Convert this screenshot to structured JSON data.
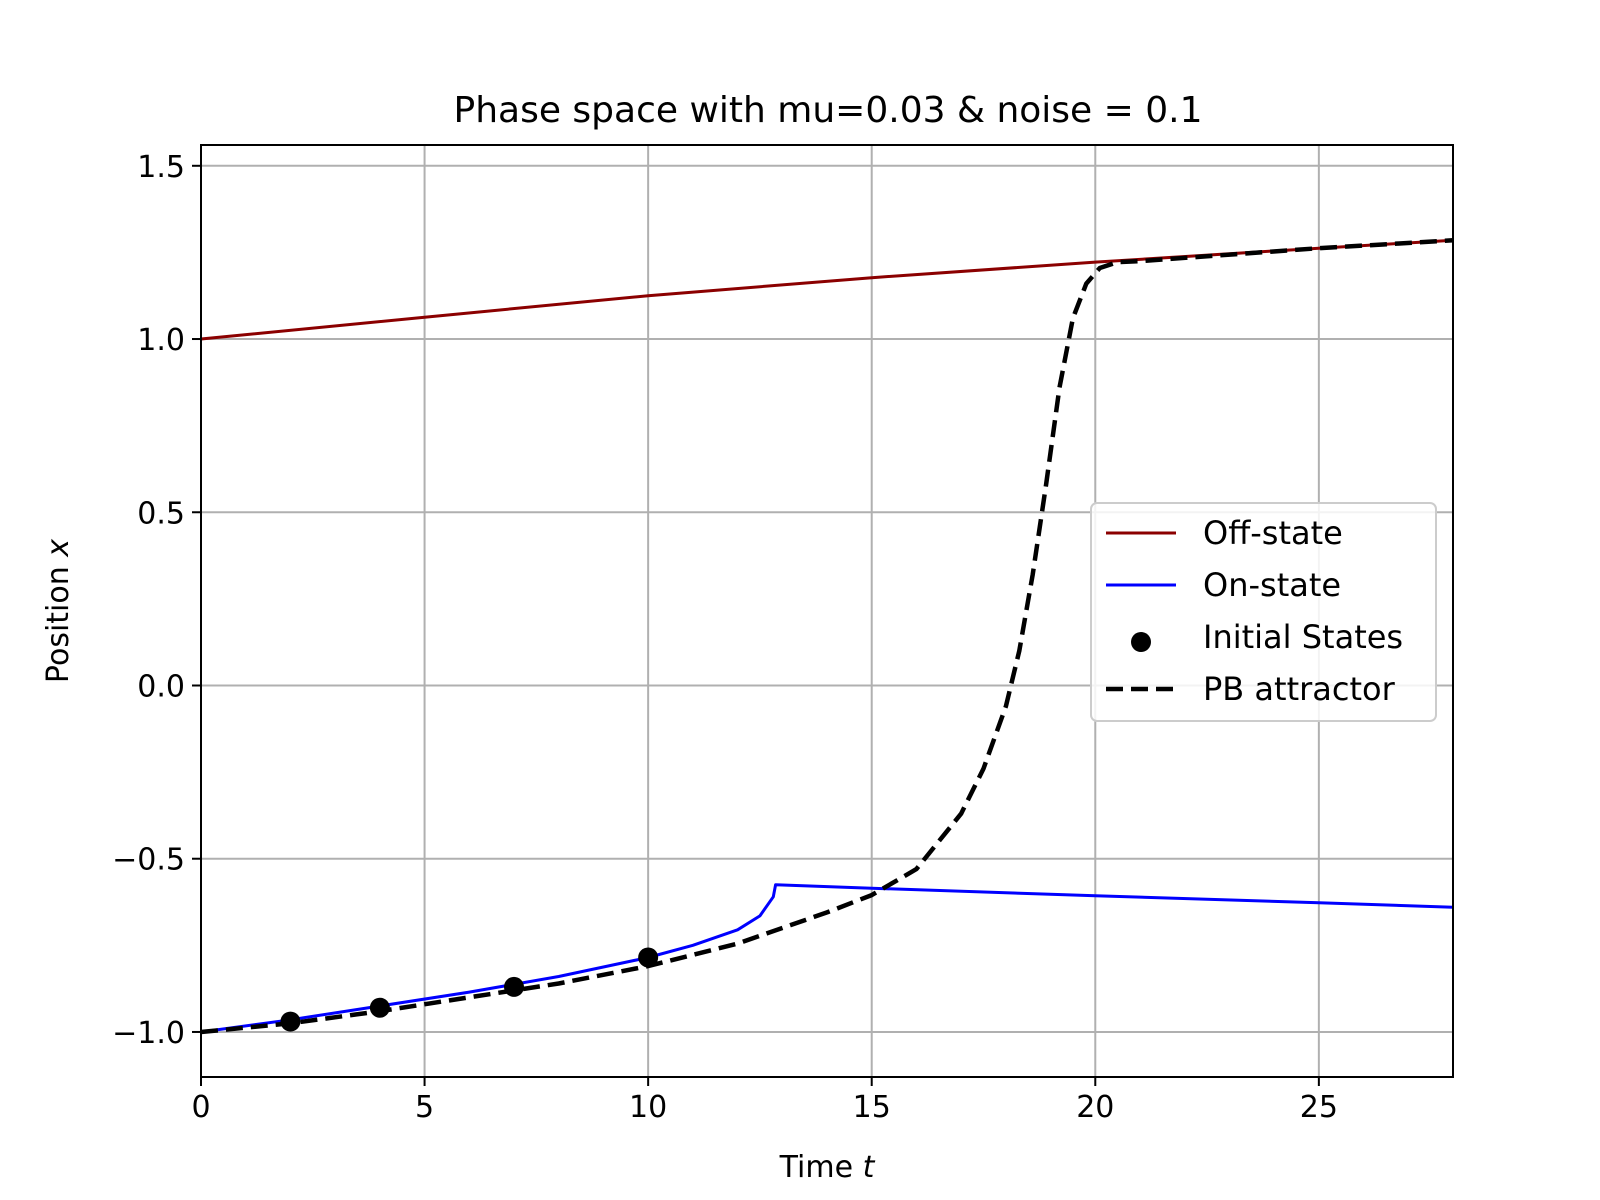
{
  "chart_data": {
    "type": "line",
    "title": "Phase space with mu=0.03 & noise = 0.1",
    "xlabel": "Time",
    "xlabel_var": "t",
    "ylabel": "Position",
    "ylabel_var": "x",
    "xlim": [
      0,
      28
    ],
    "ylim": [
      -1.13,
      1.56
    ],
    "x_ticks": [
      0,
      5,
      10,
      15,
      20,
      25
    ],
    "x_tick_labels": [
      "0",
      "5",
      "10",
      "15",
      "20",
      "25"
    ],
    "y_ticks": [
      -1.0,
      -0.5,
      0.0,
      0.5,
      1.0,
      1.5
    ],
    "y_tick_labels": [
      "−1.0",
      "−0.5",
      "0.0",
      "0.5",
      "1.0",
      "1.5"
    ],
    "grid": true,
    "legend_position": "center-right",
    "series": [
      {
        "name": "Off-state",
        "kind": "line",
        "color": "#8b0000",
        "x": [
          0,
          5,
          10,
          15,
          20,
          25,
          28
        ],
        "y": [
          1.0,
          1.063,
          1.125,
          1.177,
          1.222,
          1.262,
          1.285
        ]
      },
      {
        "name": "On-state",
        "kind": "line",
        "color": "#0000ff",
        "x": [
          0,
          2,
          4,
          6,
          8,
          10,
          11,
          12,
          12.5,
          12.8,
          12.85,
          15,
          20,
          25,
          28
        ],
        "y": [
          -1.0,
          -0.965,
          -0.925,
          -0.885,
          -0.84,
          -0.785,
          -0.75,
          -0.705,
          -0.665,
          -0.61,
          -0.575,
          -0.585,
          -0.607,
          -0.627,
          -0.64
        ]
      },
      {
        "name": "Initial States",
        "kind": "scatter",
        "color": "#000000",
        "x": [
          2,
          4,
          7,
          10
        ],
        "y": [
          -0.97,
          -0.93,
          -0.87,
          -0.785
        ]
      },
      {
        "name": "PB attractor",
        "kind": "dashed",
        "color": "#000000",
        "x": [
          0,
          2,
          4,
          6,
          8,
          10,
          12,
          13,
          14,
          15,
          16,
          17,
          17.5,
          18,
          18.3,
          18.6,
          18.9,
          19.2,
          19.5,
          19.8,
          20.1,
          20.5,
          21,
          25,
          28
        ],
        "y": [
          -1.0,
          -0.975,
          -0.94,
          -0.9,
          -0.86,
          -0.81,
          -0.745,
          -0.7,
          -0.655,
          -0.605,
          -0.53,
          -0.37,
          -0.24,
          -0.06,
          0.1,
          0.32,
          0.58,
          0.86,
          1.06,
          1.16,
          1.205,
          1.222,
          1.225,
          1.262,
          1.285
        ]
      }
    ]
  }
}
